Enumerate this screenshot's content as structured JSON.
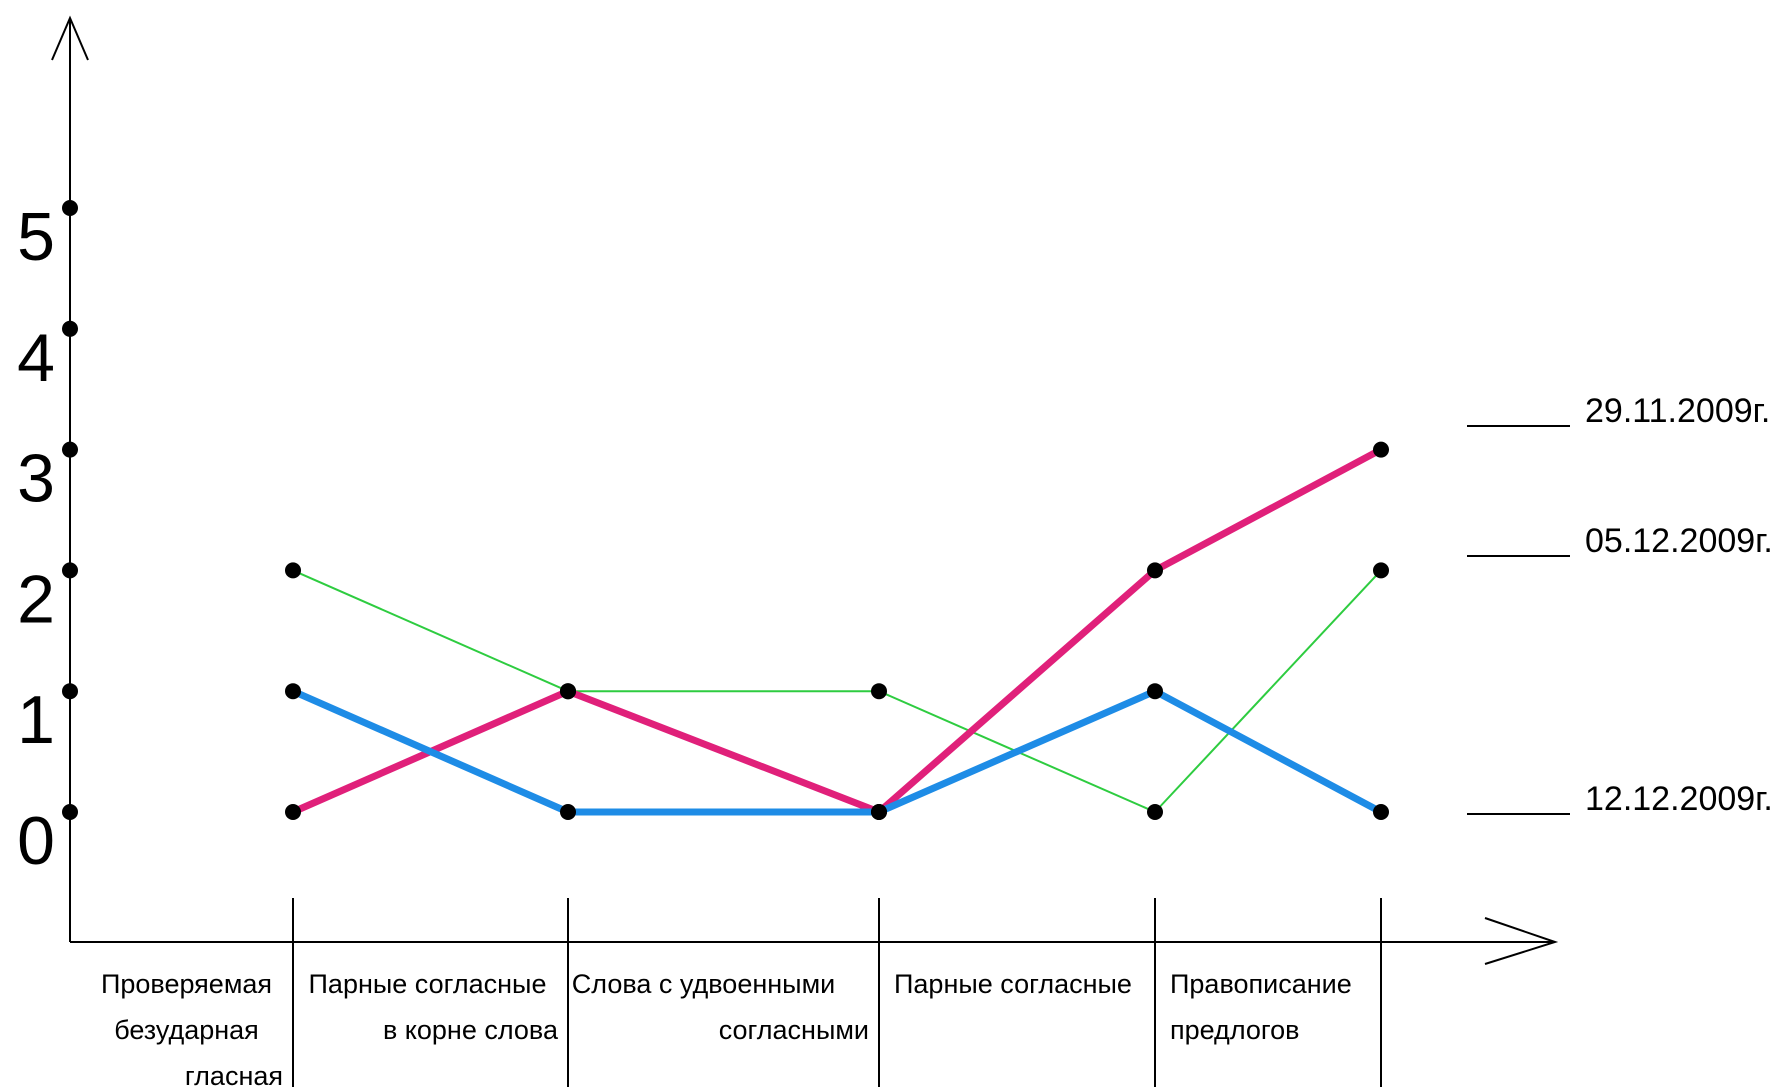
{
  "chart_data": {
    "type": "line",
    "categories": [
      [
        "Проверяемая",
        "безударная",
        "гласная"
      ],
      [
        "Парные согласные",
        "в корне слова"
      ],
      [
        "Слова с удвоенными",
        "согласными"
      ],
      [
        "Парные согласные"
      ],
      [
        "Правописание",
        "предлогов"
      ]
    ],
    "yticks": [
      "0",
      "1",
      "2",
      "3",
      "4",
      "5"
    ],
    "ylim": [
      0,
      5
    ],
    "series": [
      {
        "name": "29.11.2009г.",
        "values": [
          0,
          1,
          0,
          2,
          3
        ],
        "color": "#e0207a"
      },
      {
        "name": "05.12.2009г.",
        "values": [
          2,
          1,
          1,
          0,
          2
        ],
        "color": "#2ecc40"
      },
      {
        "name": "12.12.2009г.",
        "values": [
          1,
          0,
          0,
          1,
          0
        ],
        "color": "#1e8ce6"
      }
    ],
    "legend_position": "right"
  }
}
